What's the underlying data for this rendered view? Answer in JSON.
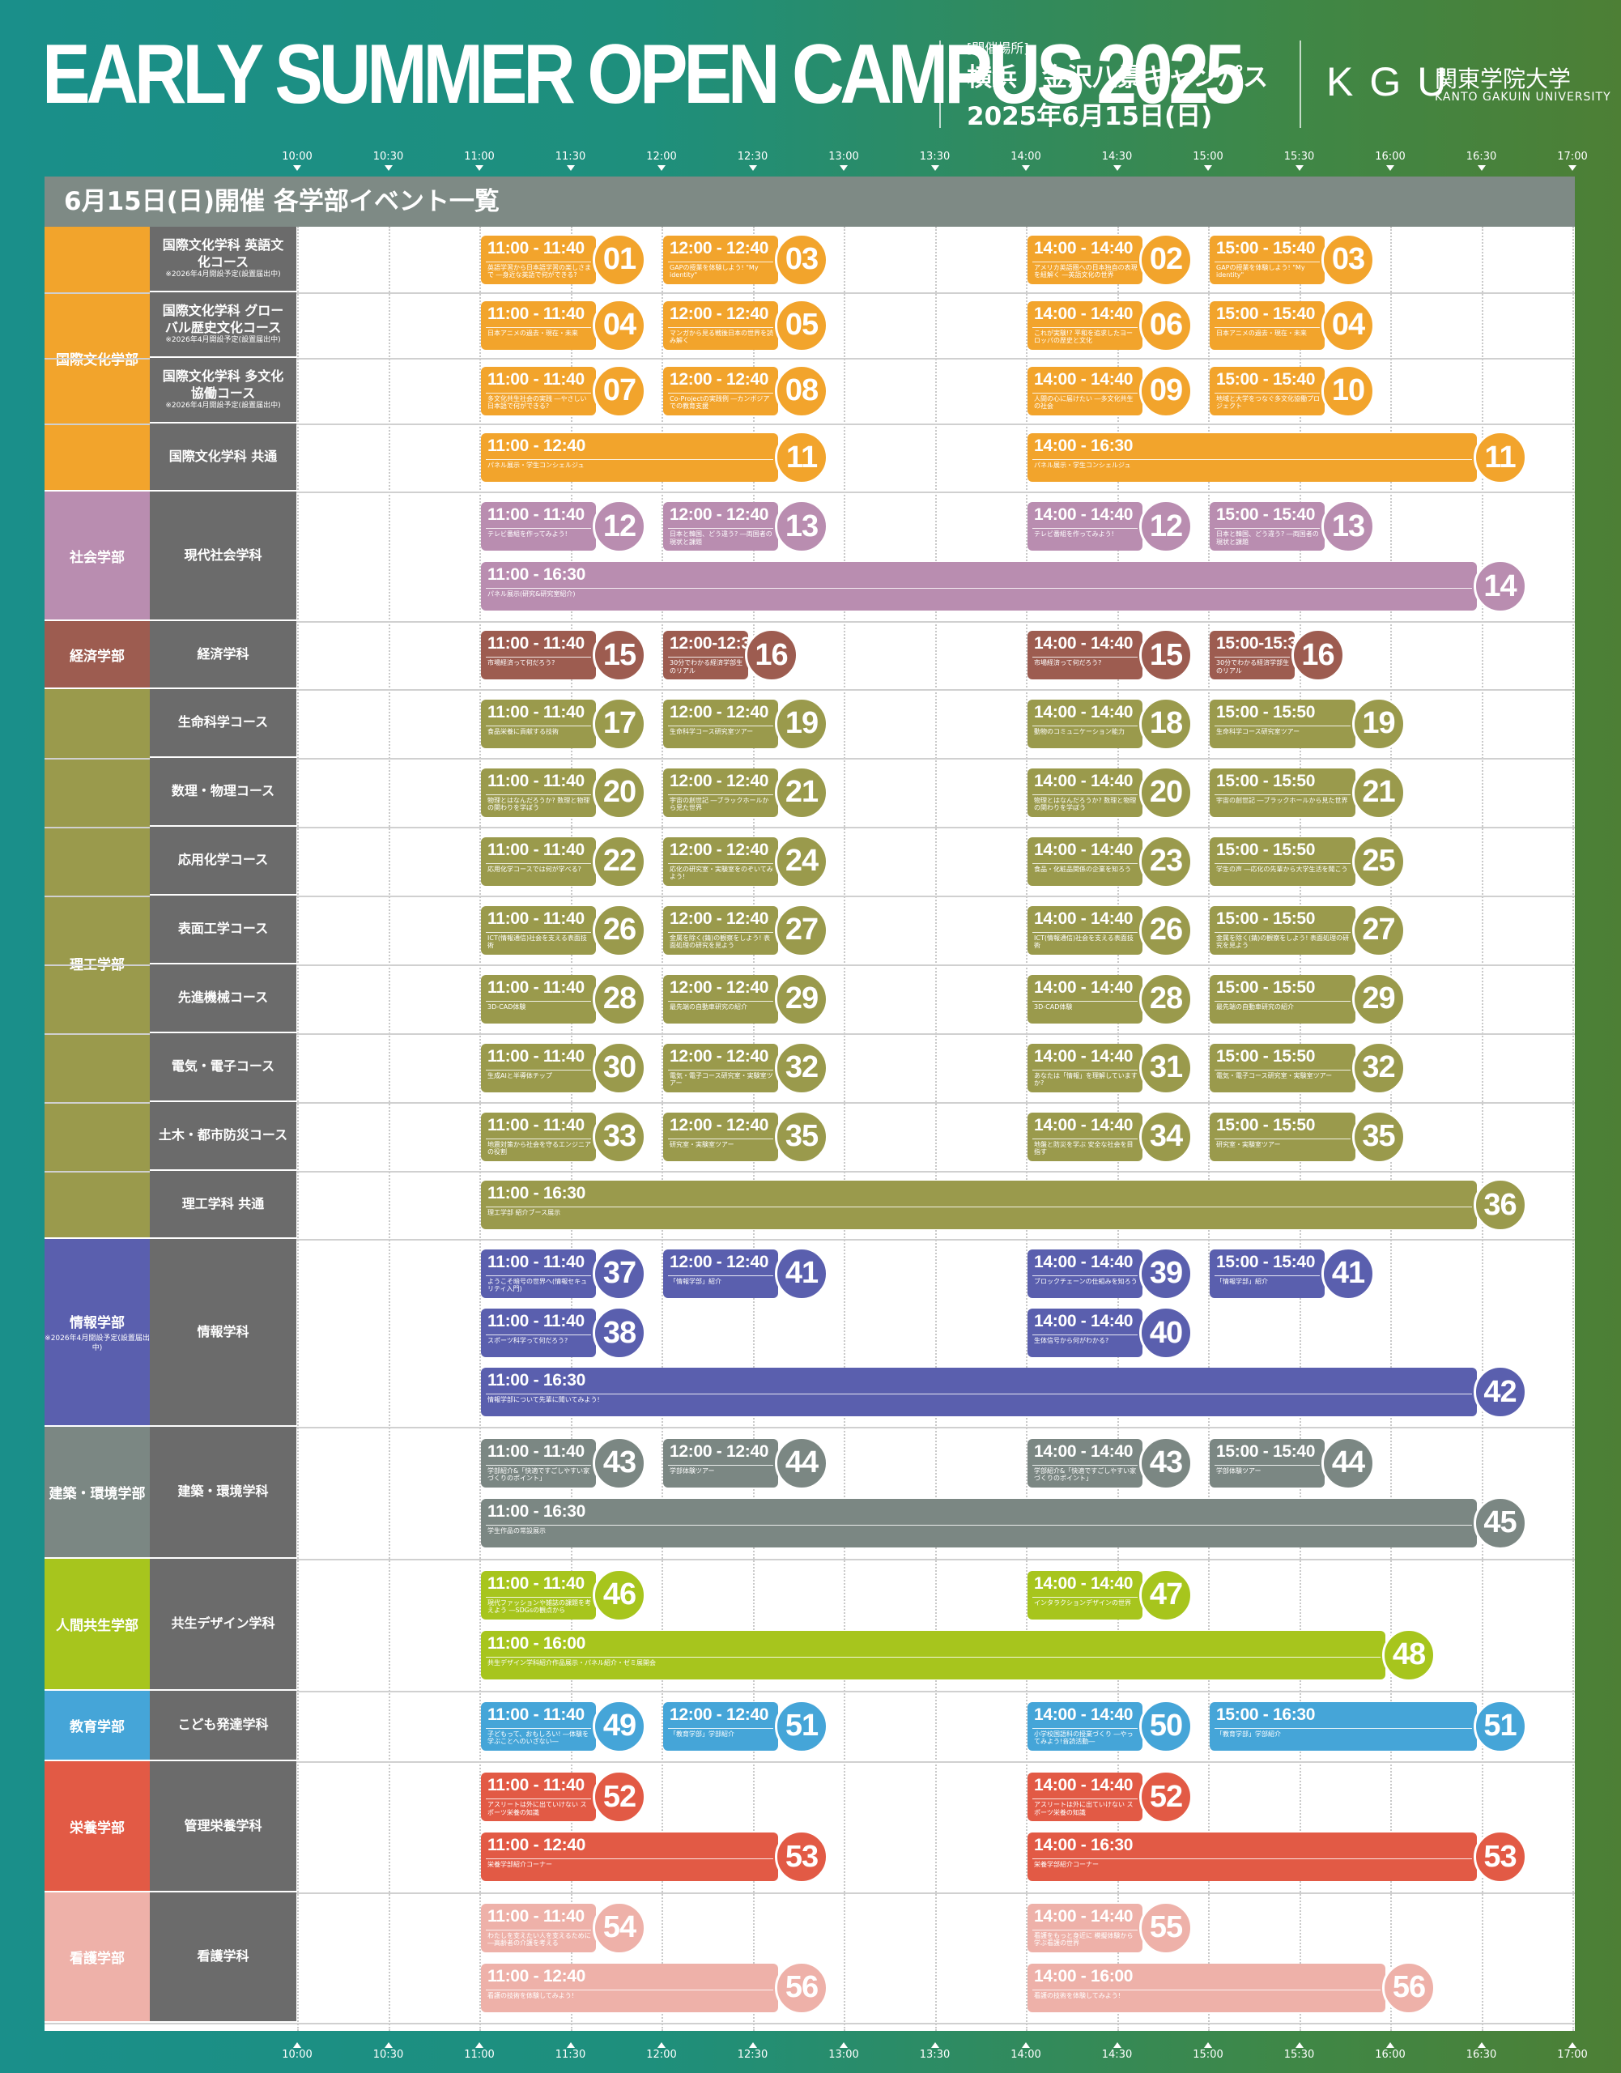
{
  "header": {
    "title": "EARLY SUMMER OPEN CAMPUS 2025",
    "venue_label": "[開催場所]",
    "venue_name": "横浜・金沢八景キャンパス",
    "date": "2025年6月15日(日)",
    "logo_mark": "KGU",
    "logo_jp": "関東学院大学",
    "logo_en": "KANTO GAKUIN UNIVERSITY"
  },
  "timeline": {
    "ticks": [
      "10:00",
      "10:30",
      "11:00",
      "11:30",
      "12:00",
      "12:30",
      "13:00",
      "13:30",
      "14:00",
      "14:30",
      "15:00",
      "15:30",
      "16:00",
      "16:30",
      "17:00"
    ]
  },
  "panel": {
    "title": "6月15日(日)開催  各学部イベント一覧"
  },
  "departments": [
    {
      "name": "国際文化学部",
      "color": "#f2a42c",
      "rows": [
        {
          "label": "国際文化学科 英語文化コース",
          "note": "※2026年4月開設予定(設置届出中)",
          "events": [
            {
              "time": "11:00 - 11:40",
              "num": "01",
              "desc": "英語学習から日本語学習の楽しさまで ―身近な英語で何ができる?"
            },
            {
              "time": "12:00 - 12:40",
              "num": "03",
              "desc": "GAPの授業を体験しよう! \"My identity\""
            },
            {
              "time": "14:00 - 14:40",
              "num": "02",
              "desc": "アメリカ英語圏への日本独自の表現を紐解く ―英語文化の世界"
            },
            {
              "time": "15:00 - 15:40",
              "num": "03",
              "desc": "GAPの授業を体験しよう! \"My identity\""
            }
          ]
        },
        {
          "label": "国際文化学科 グローバル歴史文化コース",
          "note": "※2026年4月開設予定(設置届出中)",
          "events": [
            {
              "time": "11:00 - 11:40",
              "num": "04",
              "desc": "日本アニメの過去・現在・未来"
            },
            {
              "time": "12:00 - 12:40",
              "num": "05",
              "desc": "マンガから見る戦後日本の世界を読み解く"
            },
            {
              "time": "14:00 - 14:40",
              "num": "06",
              "desc": "これが実験!? 平和を追求したヨーロッパの歴史と文化"
            },
            {
              "time": "15:00 - 15:40",
              "num": "04",
              "desc": "日本アニメの過去・現在・未来"
            }
          ]
        },
        {
          "label": "国際文化学科 多文化協働コース",
          "note": "※2026年4月開設予定(設置届出中)",
          "events": [
            {
              "time": "11:00 - 11:40",
              "num": "07",
              "desc": "多文化共生社会の実践 ―やさしい日本語で何ができる?"
            },
            {
              "time": "12:00 - 12:40",
              "num": "08",
              "desc": "Co-Projectの実践例 ―カンボジアでの教育支援"
            },
            {
              "time": "14:00 - 14:40",
              "num": "09",
              "desc": "人間の心に届けたい ―多文化共生の社会"
            },
            {
              "time": "15:00 - 15:40",
              "num": "10",
              "desc": "地域と大学をつなぐ多文化協働プロジェクト"
            }
          ]
        },
        {
          "label": "国際文化学科 共通",
          "note": "",
          "events": [
            {
              "time": "11:00 - 12:40",
              "num": "11",
              "desc": "パネル展示・学生コンシェルジュ"
            },
            {
              "time": "14:00 - 16:30",
              "num": "11",
              "desc": "パネル展示・学生コンシェルジュ"
            }
          ]
        }
      ]
    },
    {
      "name": "社会学部",
      "color": "#b98db0",
      "rows": [
        {
          "label": "現代社会学科",
          "note": "",
          "events": [
            {
              "time": "11:00 - 11:40",
              "num": "12",
              "desc": "テレビ番組を作ってみよう!"
            },
            {
              "time": "12:00 - 12:40",
              "num": "13",
              "desc": "日本と韓国、どう違う? ―両国者の現状と課題"
            },
            {
              "time": "14:00 - 14:40",
              "num": "12",
              "desc": "テレビ番組を作ってみよう!"
            },
            {
              "time": "15:00 - 15:40",
              "num": "13",
              "desc": "日本と韓国、どう違う? ―両国者の現状と課題"
            },
            {
              "time": "11:00 - 16:30",
              "num": "14",
              "desc": "パネル展示(研究&研究室紹介)"
            }
          ]
        }
      ]
    },
    {
      "name": "経済学部",
      "color": "#9d5c50",
      "rows": [
        {
          "label": "経済学科",
          "note": "",
          "events": [
            {
              "time": "11:00 - 11:40",
              "num": "15",
              "desc": "市場経済って何だろう?"
            },
            {
              "time": "12:00-12:30",
              "num": "16",
              "desc": "30分でわかる経済学部生のリアル"
            },
            {
              "time": "14:00 - 14:40",
              "num": "15",
              "desc": "市場経済って何だろう?"
            },
            {
              "time": "15:00-15:30",
              "num": "16",
              "desc": "30分でわかる経済学部生のリアル"
            }
          ]
        }
      ]
    },
    {
      "name": "理工学部",
      "color": "#9a9a4c",
      "rows": [
        {
          "label": "生命科学コース",
          "note": "",
          "events": [
            {
              "time": "11:00 - 11:40",
              "num": "17",
              "desc": "食品栄養に貢献する技術"
            },
            {
              "time": "12:00 - 12:40",
              "num": "19",
              "desc": "生命科学コース研究室ツアー"
            },
            {
              "time": "14:00 - 14:40",
              "num": "18",
              "desc": "動物のコミュニケーション能力"
            },
            {
              "time": "15:00 - 15:50",
              "num": "19",
              "desc": "生命科学コース研究室ツアー"
            }
          ]
        },
        {
          "label": "数理・物理コース",
          "note": "",
          "events": [
            {
              "time": "11:00 - 11:40",
              "num": "20",
              "desc": "物理とはなんだろうか? 数理と物理の関わりを学ぼう"
            },
            {
              "time": "12:00 - 12:40",
              "num": "21",
              "desc": "宇宙の創世記 ―ブラックホールから見た世界"
            },
            {
              "time": "14:00 - 14:40",
              "num": "20",
              "desc": "物理とはなんだろうか? 数理と物理の関わりを学ぼう"
            },
            {
              "time": "15:00 - 15:50",
              "num": "21",
              "desc": "宇宙の創世記 ―ブラックホールから見た世界"
            }
          ]
        },
        {
          "label": "応用化学コース",
          "note": "",
          "events": [
            {
              "time": "11:00 - 11:40",
              "num": "22",
              "desc": "応用化学コースでは何が学べる?"
            },
            {
              "time": "12:00 - 12:40",
              "num": "24",
              "desc": "応化の研究室・実験室をのぞいてみよう!"
            },
            {
              "time": "14:00 - 14:40",
              "num": "23",
              "desc": "食品・化粧品関係の企業を知ろう"
            },
            {
              "time": "15:00 - 15:50",
              "num": "25",
              "desc": "学生の声 ―応化の先輩から大学生活を聞こう"
            }
          ]
        },
        {
          "label": "表面工学コース",
          "note": "",
          "events": [
            {
              "time": "11:00 - 11:40",
              "num": "26",
              "desc": "ICT(情報通信)社会を支える表面技術"
            },
            {
              "time": "12:00 - 12:40",
              "num": "27",
              "desc": "金属を除く(錆)の観察をしよう! 表面処理の研究を見よう"
            },
            {
              "time": "14:00 - 14:40",
              "num": "26",
              "desc": "ICT(情報通信)社会を支える表面技術"
            },
            {
              "time": "15:00 - 15:50",
              "num": "27",
              "desc": "金属を除く(錆)の観察をしよう! 表面処理の研究を見よう"
            }
          ]
        },
        {
          "label": "先進機械コース",
          "note": "",
          "events": [
            {
              "time": "11:00 - 11:40",
              "num": "28",
              "desc": "3D-CAD体験"
            },
            {
              "time": "12:00 - 12:40",
              "num": "29",
              "desc": "最先端の自動車研究の紹介"
            },
            {
              "time": "14:00 - 14:40",
              "num": "28",
              "desc": "3D-CAD体験"
            },
            {
              "time": "15:00 - 15:50",
              "num": "29",
              "desc": "最先端の自動車研究の紹介"
            }
          ]
        },
        {
          "label": "電気・電子コース",
          "note": "",
          "events": [
            {
              "time": "11:00 - 11:40",
              "num": "30",
              "desc": "生成AIと半導体チップ"
            },
            {
              "time": "12:00 - 12:40",
              "num": "32",
              "desc": "電気・電子コース研究室・実験室ツアー"
            },
            {
              "time": "14:00 - 14:40",
              "num": "31",
              "desc": "あなたは「情報」を理解していますか?"
            },
            {
              "time": "15:00 - 15:50",
              "num": "32",
              "desc": "電気・電子コース研究室・実験室ツアー"
            }
          ]
        },
        {
          "label": "土木・都市防災コース",
          "note": "",
          "events": [
            {
              "time": "11:00 - 11:40",
              "num": "33",
              "desc": "地震対策から社会を守るエンジニアの役割"
            },
            {
              "time": "12:00 - 12:40",
              "num": "35",
              "desc": "研究室・実験室ツアー"
            },
            {
              "time": "14:00 - 14:40",
              "num": "34",
              "desc": "地盤と防災を学ぶ 安全な社会を目指す"
            },
            {
              "time": "15:00 - 15:50",
              "num": "35",
              "desc": "研究室・実験室ツアー"
            }
          ]
        },
        {
          "label": "理工学科 共通",
          "note": "",
          "events": [
            {
              "time": "11:00 - 16:30",
              "num": "36",
              "desc": "理工学部 紹介ブース展示"
            }
          ]
        }
      ]
    },
    {
      "name": "情報学部",
      "note": "※2026年4月開設予定(設置届出中)",
      "color": "#5a5fae",
      "rows": [
        {
          "label": "情報学科",
          "note": "",
          "events": [
            {
              "time": "11:00 - 11:40",
              "num": "37",
              "desc": "ようこそ暗号の世界へ(情報セキュリティ入門)"
            },
            {
              "time": "14:00 - 14:40",
              "num": "39",
              "desc": "ブロックチェーンの仕組みを知ろう"
            },
            {
              "time": "11:00 - 11:40",
              "num": "38",
              "desc": "スポーツ科学って何だろう?"
            },
            {
              "time": "12:00 - 12:40",
              "num": "41",
              "desc": "「情報学部」紹介"
            },
            {
              "time": "14:00 - 14:40",
              "num": "40",
              "desc": "生体信号から何がわかる?"
            },
            {
              "time": "15:00 - 15:40",
              "num": "41",
              "desc": "「情報学部」紹介"
            },
            {
              "time": "11:00 - 16:30",
              "num": "42",
              "desc": "情報学部について先輩に聞いてみよう!"
            }
          ]
        }
      ]
    },
    {
      "name": "建築・環境学部",
      "color": "#7b8783",
      "rows": [
        {
          "label": "建築・環境学科",
          "note": "",
          "events": [
            {
              "time": "11:00 - 11:40",
              "num": "43",
              "desc": "学部紹介&「快適ですごしやすい家づくりのポイント」"
            },
            {
              "time": "12:00 - 12:40",
              "num": "44",
              "desc": "学部体験ツアー"
            },
            {
              "time": "14:00 - 14:40",
              "num": "43",
              "desc": "学部紹介&「快適ですごしやすい家づくりのポイント」"
            },
            {
              "time": "15:00 - 15:40",
              "num": "44",
              "desc": "学部体験ツアー"
            },
            {
              "time": "11:00 - 16:30",
              "num": "45",
              "desc": "学生作品の常設展示"
            }
          ]
        }
      ]
    },
    {
      "name": "人間共生学部",
      "color": "#a7c51d",
      "rows": [
        {
          "label": "共生デザイン学科",
          "note": "",
          "events": [
            {
              "time": "11:00 - 11:40",
              "num": "46",
              "desc": "現代ファッションや雑誌の課題を考えよう ―SDGsの観点から"
            },
            {
              "time": "14:00 - 14:40",
              "num": "47",
              "desc": "インタラクションデザインの世界"
            },
            {
              "time": "11:00 - 16:00",
              "num": "48",
              "desc": "共生デザイン学科紹介作品展示・パネル紹介・ゼミ展開会"
            }
          ]
        }
      ]
    },
    {
      "name": "教育学部",
      "color": "#45a5d8",
      "rows": [
        {
          "label": "こども発達学科",
          "note": "",
          "events": [
            {
              "time": "11:00 - 11:40",
              "num": "49",
              "desc": "子どもって、おもしろい! ―体験を学ぶことへのいざない―"
            },
            {
              "time": "12:00 - 12:40",
              "num": "51",
              "desc": "「教育学部」学部紹介"
            },
            {
              "time": "14:00 - 14:40",
              "num": "50",
              "desc": "小学校国語科の授業づくり ―やってみよう!音読活動―"
            },
            {
              "time": "15:00 - 16:30",
              "num": "51",
              "desc": "「教育学部」学部紹介"
            }
          ]
        }
      ]
    },
    {
      "name": "栄養学部",
      "color": "#e25a45",
      "rows": [
        {
          "label": "管理栄養学科",
          "note": "",
          "events": [
            {
              "time": "11:00 - 11:40",
              "num": "52",
              "desc": "アスリートは外に出ていけない スポーツ栄養の知識"
            },
            {
              "time": "14:00 - 14:40",
              "num": "52",
              "desc": "アスリートは外に出ていけない スポーツ栄養の知識"
            },
            {
              "time": "11:00 - 12:40",
              "num": "53",
              "desc": "栄養学部紹介コーナー"
            },
            {
              "time": "14:00 - 16:30",
              "num": "53",
              "desc": "栄養学部紹介コーナー"
            }
          ]
        }
      ]
    },
    {
      "name": "看護学部",
      "color": "#eeb1a9",
      "rows": [
        {
          "label": "看護学科",
          "note": "",
          "events": [
            {
              "time": "11:00 - 11:40",
              "num": "54",
              "desc": "わたしを支えたい人を支えるために ―高齢者の介護を考える"
            },
            {
              "time": "14:00 - 14:40",
              "num": "55",
              "desc": "看護をもっと身近に 模擬体験から学ぶ看護の世界"
            },
            {
              "time": "11:00 - 12:40",
              "num": "56",
              "desc": "看護の技術を体験してみよう!"
            },
            {
              "time": "14:00 - 16:00",
              "num": "56",
              "desc": "看護の技術を体験してみよう!"
            }
          ]
        }
      ]
    }
  ]
}
